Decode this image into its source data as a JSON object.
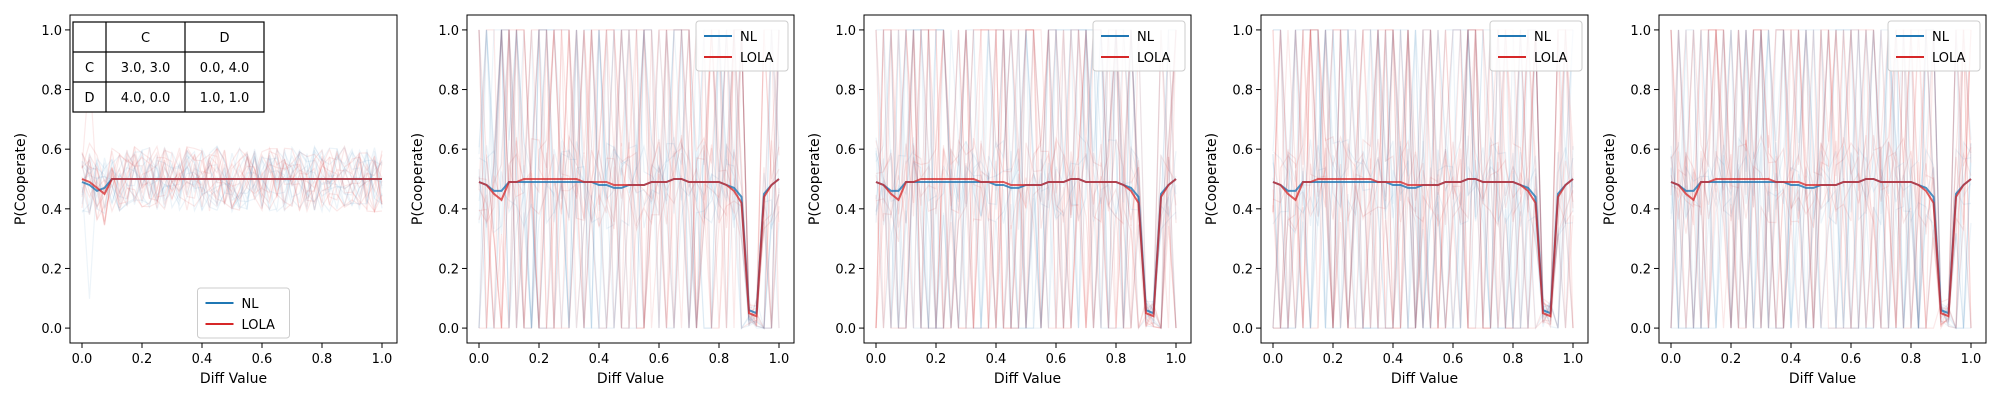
{
  "colors": {
    "NL": "#1f77b4",
    "LOLA": "#d62728",
    "bg": "#ffffff",
    "axis": "#000000"
  },
  "payoff_table": {
    "col_headers": [
      "C",
      "D"
    ],
    "rows": [
      {
        "label": "C",
        "cells": [
          "3.0, 3.0",
          "0.0, 4.0"
        ]
      },
      {
        "label": "D",
        "cells": [
          "4.0, 0.0",
          "1.0, 1.0"
        ]
      }
    ]
  },
  "chart_data": [
    {
      "type": "line",
      "xlabel": "Diff Value",
      "ylabel": "P(Cooperate)",
      "xlim": [
        -0.04,
        1.05
      ],
      "ylim": [
        -0.05,
        1.05
      ],
      "xticks": [
        "0.0",
        "0.2",
        "0.4",
        "0.6",
        "0.8",
        "1.0"
      ],
      "yticks": [
        "0.0",
        "0.2",
        "0.4",
        "0.6",
        "0.8",
        "1.0"
      ],
      "legend": {
        "placement": "lower-center",
        "entries": [
          "NL",
          "LOLA"
        ]
      },
      "has_table": true,
      "x": [
        0.0,
        0.025,
        0.05,
        0.075,
        0.1,
        0.125,
        0.15,
        0.175,
        0.2,
        0.225,
        0.25,
        0.275,
        0.3,
        0.325,
        0.35,
        0.375,
        0.4,
        0.425,
        0.45,
        0.475,
        0.5,
        0.525,
        0.55,
        0.575,
        0.6,
        0.625,
        0.65,
        0.675,
        0.7,
        0.725,
        0.75,
        0.775,
        0.8,
        0.825,
        0.85,
        0.875,
        0.9,
        0.925,
        0.95,
        0.975,
        1.0
      ],
      "series": [
        {
          "name": "NL",
          "values": [
            0.49,
            0.48,
            0.46,
            0.47,
            0.5,
            0.5,
            0.5,
            0.5,
            0.5,
            0.5,
            0.5,
            0.5,
            0.5,
            0.5,
            0.5,
            0.5,
            0.5,
            0.5,
            0.5,
            0.5,
            0.5,
            0.5,
            0.5,
            0.5,
            0.5,
            0.5,
            0.5,
            0.5,
            0.5,
            0.5,
            0.5,
            0.5,
            0.5,
            0.5,
            0.5,
            0.5,
            0.5,
            0.5,
            0.5,
            0.5,
            0.5
          ]
        },
        {
          "name": "LOLA",
          "values": [
            0.5,
            0.49,
            0.47,
            0.45,
            0.5,
            0.5,
            0.5,
            0.5,
            0.5,
            0.5,
            0.5,
            0.5,
            0.5,
            0.5,
            0.5,
            0.5,
            0.5,
            0.5,
            0.5,
            0.5,
            0.5,
            0.5,
            0.5,
            0.5,
            0.5,
            0.5,
            0.5,
            0.5,
            0.5,
            0.5,
            0.5,
            0.5,
            0.5,
            0.5,
            0.5,
            0.5,
            0.5,
            0.5,
            0.5,
            0.5,
            0.5
          ]
        }
      ]
    },
    {
      "type": "line",
      "xlabel": "Diff Value",
      "ylabel": "P(Cooperate)",
      "xlim": [
        -0.04,
        1.05
      ],
      "ylim": [
        -0.05,
        1.05
      ],
      "xticks": [
        "0.0",
        "0.2",
        "0.4",
        "0.6",
        "0.8",
        "1.0"
      ],
      "yticks": [
        "0.0",
        "0.2",
        "0.4",
        "0.6",
        "0.8",
        "1.0"
      ],
      "legend": {
        "placement": "top-right",
        "entries": [
          "NL",
          "LOLA"
        ]
      },
      "has_table": false,
      "x": [
        0.0,
        0.025,
        0.05,
        0.075,
        0.1,
        0.125,
        0.15,
        0.175,
        0.2,
        0.225,
        0.25,
        0.275,
        0.3,
        0.325,
        0.35,
        0.375,
        0.4,
        0.425,
        0.45,
        0.475,
        0.5,
        0.525,
        0.55,
        0.575,
        0.6,
        0.625,
        0.65,
        0.675,
        0.7,
        0.725,
        0.75,
        0.775,
        0.8,
        0.825,
        0.85,
        0.875,
        0.9,
        0.925,
        0.95,
        0.975,
        1.0
      ],
      "series": [
        {
          "name": "NL",
          "values": [
            0.49,
            0.48,
            0.46,
            0.46,
            0.49,
            0.49,
            0.49,
            0.49,
            0.49,
            0.49,
            0.49,
            0.49,
            0.49,
            0.49,
            0.49,
            0.49,
            0.48,
            0.48,
            0.47,
            0.47,
            0.48,
            0.48,
            0.48,
            0.49,
            0.49,
            0.49,
            0.5,
            0.5,
            0.49,
            0.49,
            0.49,
            0.49,
            0.49,
            0.48,
            0.47,
            0.44,
            0.06,
            0.05,
            0.45,
            0.48,
            0.5
          ]
        },
        {
          "name": "LOLA",
          "values": [
            0.49,
            0.48,
            0.45,
            0.43,
            0.49,
            0.49,
            0.5,
            0.5,
            0.5,
            0.5,
            0.5,
            0.5,
            0.5,
            0.5,
            0.49,
            0.49,
            0.49,
            0.49,
            0.48,
            0.48,
            0.48,
            0.48,
            0.48,
            0.49,
            0.49,
            0.49,
            0.5,
            0.5,
            0.49,
            0.49,
            0.49,
            0.49,
            0.49,
            0.48,
            0.46,
            0.42,
            0.05,
            0.04,
            0.44,
            0.48,
            0.5
          ]
        }
      ]
    },
    {
      "type": "line",
      "xlabel": "Diff Value",
      "ylabel": "P(Cooperate)",
      "xlim": [
        -0.04,
        1.05
      ],
      "ylim": [
        -0.05,
        1.05
      ],
      "xticks": [
        "0.0",
        "0.2",
        "0.4",
        "0.6",
        "0.8",
        "1.0"
      ],
      "yticks": [
        "0.0",
        "0.2",
        "0.4",
        "0.6",
        "0.8",
        "1.0"
      ],
      "legend": {
        "placement": "top-right",
        "entries": [
          "NL",
          "LOLA"
        ]
      },
      "has_table": false,
      "x": [
        0.0,
        0.025,
        0.05,
        0.075,
        0.1,
        0.125,
        0.15,
        0.175,
        0.2,
        0.225,
        0.25,
        0.275,
        0.3,
        0.325,
        0.35,
        0.375,
        0.4,
        0.425,
        0.45,
        0.475,
        0.5,
        0.525,
        0.55,
        0.575,
        0.6,
        0.625,
        0.65,
        0.675,
        0.7,
        0.725,
        0.75,
        0.775,
        0.8,
        0.825,
        0.85,
        0.875,
        0.9,
        0.925,
        0.95,
        0.975,
        1.0
      ],
      "series": [
        {
          "name": "NL",
          "values": [
            0.49,
            0.48,
            0.46,
            0.46,
            0.49,
            0.49,
            0.49,
            0.49,
            0.49,
            0.49,
            0.49,
            0.49,
            0.49,
            0.49,
            0.49,
            0.49,
            0.48,
            0.48,
            0.47,
            0.47,
            0.48,
            0.48,
            0.48,
            0.49,
            0.49,
            0.49,
            0.5,
            0.5,
            0.49,
            0.49,
            0.49,
            0.49,
            0.49,
            0.48,
            0.47,
            0.44,
            0.06,
            0.05,
            0.45,
            0.48,
            0.5
          ]
        },
        {
          "name": "LOLA",
          "values": [
            0.49,
            0.48,
            0.45,
            0.43,
            0.49,
            0.49,
            0.5,
            0.5,
            0.5,
            0.5,
            0.5,
            0.5,
            0.5,
            0.5,
            0.49,
            0.49,
            0.49,
            0.49,
            0.48,
            0.48,
            0.48,
            0.48,
            0.48,
            0.49,
            0.49,
            0.49,
            0.5,
            0.5,
            0.49,
            0.49,
            0.49,
            0.49,
            0.49,
            0.48,
            0.46,
            0.42,
            0.05,
            0.04,
            0.44,
            0.48,
            0.5
          ]
        }
      ]
    },
    {
      "type": "line",
      "xlabel": "Diff Value",
      "ylabel": "P(Cooperate)",
      "xlim": [
        -0.04,
        1.05
      ],
      "ylim": [
        -0.05,
        1.05
      ],
      "xticks": [
        "0.0",
        "0.2",
        "0.4",
        "0.6",
        "0.8",
        "1.0"
      ],
      "yticks": [
        "0.0",
        "0.2",
        "0.4",
        "0.6",
        "0.8",
        "1.0"
      ],
      "legend": {
        "placement": "top-right",
        "entries": [
          "NL",
          "LOLA"
        ]
      },
      "has_table": false,
      "x": [
        0.0,
        0.025,
        0.05,
        0.075,
        0.1,
        0.125,
        0.15,
        0.175,
        0.2,
        0.225,
        0.25,
        0.275,
        0.3,
        0.325,
        0.35,
        0.375,
        0.4,
        0.425,
        0.45,
        0.475,
        0.5,
        0.525,
        0.55,
        0.575,
        0.6,
        0.625,
        0.65,
        0.675,
        0.7,
        0.725,
        0.75,
        0.775,
        0.8,
        0.825,
        0.85,
        0.875,
        0.9,
        0.925,
        0.95,
        0.975,
        1.0
      ],
      "series": [
        {
          "name": "NL",
          "values": [
            0.49,
            0.48,
            0.46,
            0.46,
            0.49,
            0.49,
            0.49,
            0.49,
            0.49,
            0.49,
            0.49,
            0.49,
            0.49,
            0.49,
            0.49,
            0.49,
            0.48,
            0.48,
            0.47,
            0.47,
            0.48,
            0.48,
            0.48,
            0.49,
            0.49,
            0.49,
            0.5,
            0.5,
            0.49,
            0.49,
            0.49,
            0.49,
            0.49,
            0.48,
            0.47,
            0.44,
            0.06,
            0.05,
            0.45,
            0.48,
            0.5
          ]
        },
        {
          "name": "LOLA",
          "values": [
            0.49,
            0.48,
            0.45,
            0.43,
            0.49,
            0.49,
            0.5,
            0.5,
            0.5,
            0.5,
            0.5,
            0.5,
            0.5,
            0.5,
            0.49,
            0.49,
            0.49,
            0.49,
            0.48,
            0.48,
            0.48,
            0.48,
            0.48,
            0.49,
            0.49,
            0.49,
            0.5,
            0.5,
            0.49,
            0.49,
            0.49,
            0.49,
            0.49,
            0.48,
            0.46,
            0.42,
            0.05,
            0.04,
            0.44,
            0.48,
            0.5
          ]
        }
      ]
    },
    {
      "type": "line",
      "xlabel": "Diff Value",
      "ylabel": "P(Cooperate)",
      "xlim": [
        -0.04,
        1.05
      ],
      "ylim": [
        -0.05,
        1.05
      ],
      "xticks": [
        "0.0",
        "0.2",
        "0.4",
        "0.6",
        "0.8",
        "1.0"
      ],
      "yticks": [
        "0.0",
        "0.2",
        "0.4",
        "0.6",
        "0.8",
        "1.0"
      ],
      "legend": {
        "placement": "top-right",
        "entries": [
          "NL",
          "LOLA"
        ]
      },
      "has_table": false,
      "x": [
        0.0,
        0.025,
        0.05,
        0.075,
        0.1,
        0.125,
        0.15,
        0.175,
        0.2,
        0.225,
        0.25,
        0.275,
        0.3,
        0.325,
        0.35,
        0.375,
        0.4,
        0.425,
        0.45,
        0.475,
        0.5,
        0.525,
        0.55,
        0.575,
        0.6,
        0.625,
        0.65,
        0.675,
        0.7,
        0.725,
        0.75,
        0.775,
        0.8,
        0.825,
        0.85,
        0.875,
        0.9,
        0.925,
        0.95,
        0.975,
        1.0
      ],
      "series": [
        {
          "name": "NL",
          "values": [
            0.49,
            0.48,
            0.46,
            0.46,
            0.49,
            0.49,
            0.49,
            0.49,
            0.49,
            0.49,
            0.49,
            0.49,
            0.49,
            0.49,
            0.49,
            0.49,
            0.48,
            0.48,
            0.47,
            0.47,
            0.48,
            0.48,
            0.48,
            0.49,
            0.49,
            0.49,
            0.5,
            0.5,
            0.49,
            0.49,
            0.49,
            0.49,
            0.49,
            0.48,
            0.47,
            0.44,
            0.06,
            0.05,
            0.45,
            0.48,
            0.5
          ]
        },
        {
          "name": "LOLA",
          "values": [
            0.49,
            0.48,
            0.45,
            0.43,
            0.49,
            0.49,
            0.5,
            0.5,
            0.5,
            0.5,
            0.5,
            0.5,
            0.5,
            0.5,
            0.49,
            0.49,
            0.49,
            0.49,
            0.48,
            0.48,
            0.48,
            0.48,
            0.48,
            0.49,
            0.49,
            0.49,
            0.5,
            0.5,
            0.49,
            0.49,
            0.49,
            0.49,
            0.49,
            0.48,
            0.46,
            0.42,
            0.05,
            0.04,
            0.44,
            0.48,
            0.5
          ]
        }
      ]
    }
  ]
}
